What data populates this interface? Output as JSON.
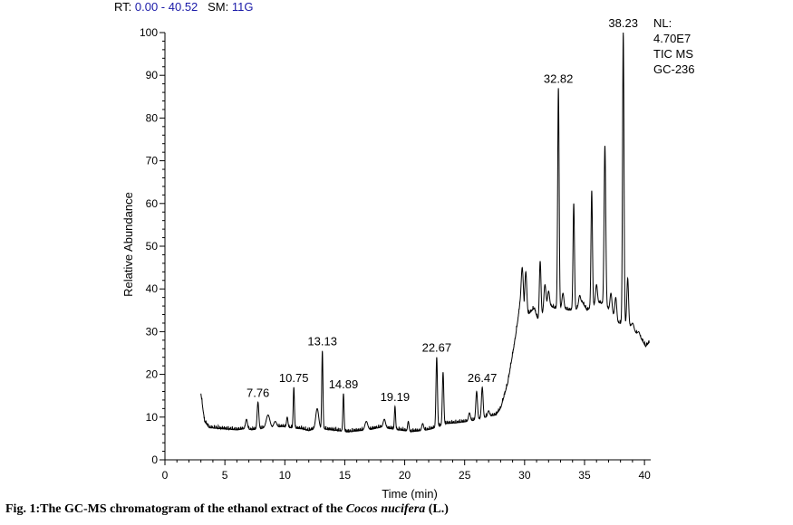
{
  "header": {
    "rt_label": "RT:",
    "rt_value": "0.00 - 40.52",
    "sm_label": "SM:",
    "sm_value": "11G"
  },
  "info": {
    "nl_label": "NL:",
    "nl_value": "4.70E7",
    "detector": "TIC  MS",
    "sample": "GC-236"
  },
  "caption": {
    "prefix": "Fig. 1:The GC-MS chromatogram of the ethanol extract of the ",
    "species": "Cocos nucifera",
    "suffix": " (L.)"
  },
  "chart_data": {
    "type": "line",
    "xlabel": "Time (min)",
    "ylabel": "Relative Abundance",
    "xlim": [
      0,
      40.52
    ],
    "ylim": [
      0,
      100
    ],
    "x_ticks": [
      0,
      5,
      10,
      15,
      20,
      25,
      30,
      35,
      40
    ],
    "y_ticks": [
      0,
      10,
      20,
      30,
      40,
      50,
      60,
      70,
      80,
      90,
      100
    ],
    "line_color": "#000000",
    "baseline": [
      [
        3.0,
        15.5
      ],
      [
        3.3,
        9
      ],
      [
        3.7,
        7.5
      ],
      [
        4.5,
        7.3
      ],
      [
        5.5,
        7.1
      ],
      [
        6.0,
        7.0
      ],
      [
        6.8,
        7.3
      ],
      [
        7.2,
        7.0
      ],
      [
        8.5,
        7.5
      ],
      [
        9.3,
        7.6
      ],
      [
        9.8,
        7.8
      ],
      [
        10.5,
        7.5
      ],
      [
        11.5,
        7.2
      ],
      [
        12.0,
        6.8
      ],
      [
        12.8,
        7.5
      ],
      [
        13.3,
        7.2
      ],
      [
        13.8,
        7.0
      ],
      [
        14.5,
        6.8
      ],
      [
        15.3,
        6.5
      ],
      [
        16.2,
        6.8
      ],
      [
        17.0,
        7.0
      ],
      [
        18.0,
        7.6
      ],
      [
        19.5,
        7.0
      ],
      [
        20.5,
        6.6
      ],
      [
        21.5,
        6.8
      ],
      [
        22.2,
        7.2
      ],
      [
        23.5,
        8.5
      ],
      [
        24.2,
        8.6
      ],
      [
        24.8,
        8.8
      ],
      [
        25.3,
        9.0
      ],
      [
        25.7,
        9.2
      ],
      [
        26.8,
        10.0
      ],
      [
        27.6,
        10.5
      ],
      [
        28.0,
        12.0
      ],
      [
        28.6,
        18.0
      ],
      [
        29.2,
        28.0
      ],
      [
        29.6,
        36.0
      ],
      [
        30.3,
        34.0
      ],
      [
        30.8,
        35.5
      ],
      [
        31.2,
        32.0
      ],
      [
        31.8,
        36.5
      ],
      [
        32.5,
        35.5
      ],
      [
        33.2,
        35.5
      ],
      [
        33.7,
        35.0
      ],
      [
        34.3,
        35.2
      ],
      [
        34.8,
        37.0
      ],
      [
        35.2,
        35.0
      ],
      [
        35.8,
        36.2
      ],
      [
        36.3,
        36.8
      ],
      [
        36.8,
        35.8
      ],
      [
        37.3,
        34.5
      ],
      [
        37.8,
        32.0
      ],
      [
        38.6,
        32.0
      ],
      [
        39.2,
        30.0
      ],
      [
        39.8,
        28.0
      ],
      [
        40.1,
        26.5
      ],
      [
        40.4,
        27.5
      ]
    ],
    "peaks": [
      {
        "rt": 6.8,
        "height": 9.5,
        "w": 0.08
      },
      {
        "rt": 7.76,
        "height": 13.5,
        "w": 0.07,
        "label": "7.76"
      },
      {
        "rt": 8.6,
        "height": 10.5,
        "w": 0.15
      },
      {
        "rt": 9.2,
        "height": 9.0,
        "w": 0.12
      },
      {
        "rt": 10.2,
        "height": 10.0,
        "w": 0.06
      },
      {
        "rt": 10.75,
        "height": 17.0,
        "w": 0.05,
        "label": "10.75"
      },
      {
        "rt": 12.7,
        "height": 12.0,
        "w": 0.12
      },
      {
        "rt": 13.13,
        "height": 25.5,
        "w": 0.05,
        "label": "13.13"
      },
      {
        "rt": 14.89,
        "height": 15.5,
        "w": 0.05,
        "label": "14.89"
      },
      {
        "rt": 16.8,
        "height": 9.0,
        "w": 0.12
      },
      {
        "rt": 18.3,
        "height": 9.5,
        "w": 0.1
      },
      {
        "rt": 19.19,
        "height": 12.5,
        "w": 0.05,
        "label": "19.19"
      },
      {
        "rt": 20.3,
        "height": 9.0,
        "w": 0.06
      },
      {
        "rt": 21.5,
        "height": 8.5,
        "w": 0.08
      },
      {
        "rt": 22.67,
        "height": 24.0,
        "w": 0.06,
        "label": "22.67"
      },
      {
        "rt": 23.2,
        "height": 20.5,
        "w": 0.06
      },
      {
        "rt": 25.4,
        "height": 11.0,
        "w": 0.08
      },
      {
        "rt": 26.0,
        "height": 16.0,
        "w": 0.07
      },
      {
        "rt": 26.47,
        "height": 17.0,
        "w": 0.07,
        "label": "26.47"
      },
      {
        "rt": 27.0,
        "height": 11.5,
        "w": 0.08
      },
      {
        "rt": 29.8,
        "height": 45.0,
        "w": 0.09
      },
      {
        "rt": 30.1,
        "height": 44.0,
        "w": 0.08
      },
      {
        "rt": 31.3,
        "height": 46.5,
        "w": 0.07
      },
      {
        "rt": 31.7,
        "height": 41.0,
        "w": 0.08
      },
      {
        "rt": 32.0,
        "height": 39.5,
        "w": 0.08
      },
      {
        "rt": 32.82,
        "height": 87.0,
        "w": 0.06,
        "label": "32.82"
      },
      {
        "rt": 33.2,
        "height": 39.0,
        "w": 0.08
      },
      {
        "rt": 34.1,
        "height": 60.0,
        "w": 0.06
      },
      {
        "rt": 34.6,
        "height": 38.5,
        "w": 0.08
      },
      {
        "rt": 35.6,
        "height": 63.0,
        "w": 0.06
      },
      {
        "rt": 36.0,
        "height": 41.0,
        "w": 0.08
      },
      {
        "rt": 36.7,
        "height": 73.5,
        "w": 0.07
      },
      {
        "rt": 37.2,
        "height": 39.0,
        "w": 0.08
      },
      {
        "rt": 37.6,
        "height": 38.0,
        "w": 0.08
      },
      {
        "rt": 38.23,
        "height": 100.0,
        "w": 0.06,
        "label": "38.23"
      },
      {
        "rt": 38.6,
        "height": 42.5,
        "w": 0.07
      },
      {
        "rt": 39.0,
        "height": 32.0,
        "w": 0.1
      },
      {
        "rt": 39.5,
        "height": 30.0,
        "w": 0.1
      }
    ]
  }
}
